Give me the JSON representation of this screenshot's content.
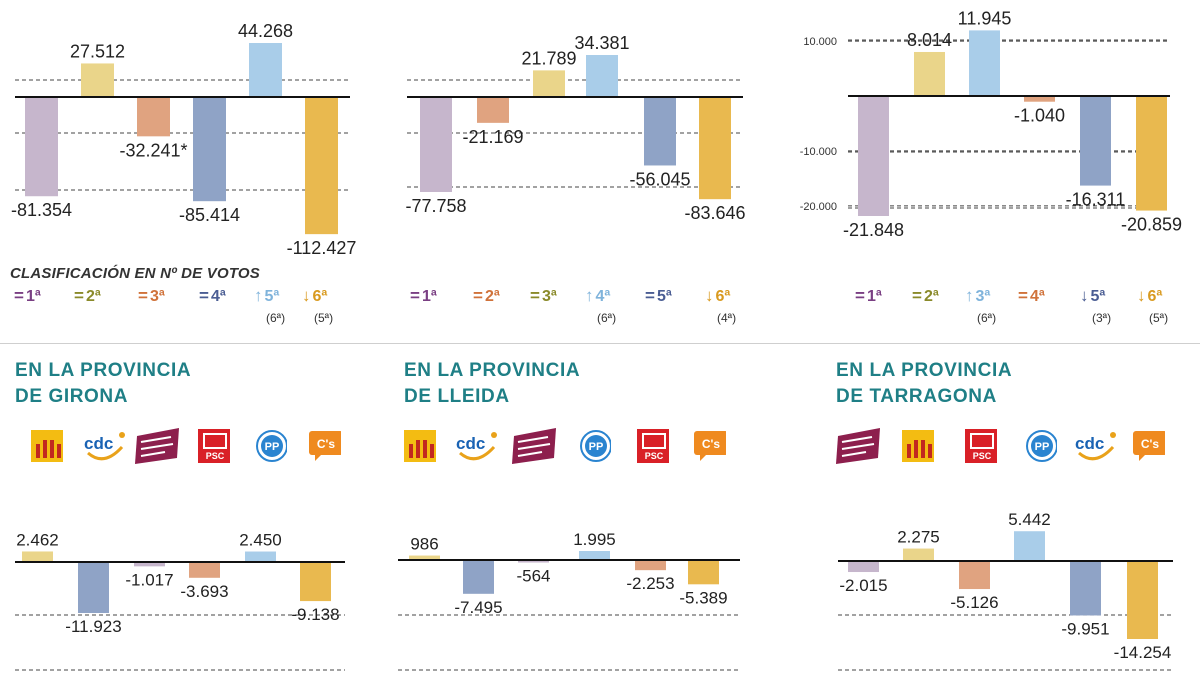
{
  "colors": {
    "erc": "#ead58a",
    "cdc": "#a9cde9",
    "jxs": "#c6b6cc",
    "psc": "#e0a380",
    "pp": "#8fa3c6",
    "cs": "#e9b94f",
    "teal": "#1f7f86",
    "purple": "#7a3f83",
    "olive": "#8a8a2a",
    "orange": "#d0723a",
    "navy": "#4a5d93",
    "lightblue": "#7fb3db",
    "gold": "#d99a1f"
  },
  "clasificacion_label": "CLASIFICACIÓN EN Nº DE VOTOS",
  "chart_data": [
    {
      "type": "bar",
      "categories": [
        "",
        "",
        "",
        "",
        "",
        ""
      ],
      "values": [
        -81354,
        27512,
        -32241,
        -85414,
        44268,
        -112427
      ],
      "labels": [
        "-81.354",
        "27.512",
        "-32.241*",
        "-85.414",
        "44.268",
        "-112.427"
      ],
      "series_colors": [
        "jxs",
        "erc",
        "psc",
        "pp",
        "cdc",
        "cs"
      ],
      "ylim": [
        -112427,
        44268
      ],
      "grid": true
    },
    {
      "type": "bar",
      "categories": [
        "",
        "",
        "",
        "",
        "",
        ""
      ],
      "values": [
        -77758,
        -21169,
        21789,
        34381,
        -56045,
        -83646
      ],
      "labels": [
        "-77.758",
        "-21.169",
        "21.789",
        "34.381",
        "-56.045",
        "-83.646"
      ],
      "series_colors": [
        "jxs",
        "psc",
        "erc",
        "cdc",
        "pp",
        "cs"
      ],
      "ylim": [
        -83646,
        34381
      ],
      "grid": true
    },
    {
      "type": "bar",
      "categories": [
        "",
        "",
        "",
        "",
        "",
        ""
      ],
      "values": [
        -21848,
        8014,
        11945,
        -1040,
        -16311,
        -20859
      ],
      "labels": [
        "-21.848",
        "8.014",
        "11.945",
        "-1.040",
        "-16.311",
        "-20.859"
      ],
      "series_colors": [
        "jxs",
        "erc",
        "cdc",
        "psc",
        "pp",
        "cs"
      ],
      "ylim": [
        -21848,
        11945
      ],
      "yticks": [
        {
          "value": 10000,
          "label": "10.000"
        },
        {
          "value": -10000,
          "label": "-10.000"
        },
        {
          "value": -20000,
          "label": "-20.000"
        }
      ],
      "grid": true
    },
    {
      "type": "bar",
      "title": "EN LA PROVINCIA DE GIRONA",
      "categories": [
        "",
        "",
        "",
        "",
        "",
        ""
      ],
      "values": [
        2462,
        -11923,
        -1017,
        -3693,
        2450,
        -9138
      ],
      "labels": [
        "2.462",
        "-11.923",
        "-1.017",
        "-3.693",
        "2.450",
        "-9.138"
      ],
      "series_colors": [
        "erc",
        "pp",
        "jxs",
        "psc",
        "cdc",
        "cs"
      ],
      "ylim": [
        -11923,
        2462
      ],
      "grid": true
    },
    {
      "type": "bar",
      "title": "EN LA PROVINCIA DE LLEIDA",
      "categories": [
        "",
        "",
        "",
        "",
        "",
        ""
      ],
      "values": [
        986,
        -7495,
        -564,
        1995,
        -2253,
        -5389
      ],
      "labels": [
        "986",
        "-7.495",
        "-564",
        "1.995",
        "-2.253",
        "-5.389"
      ],
      "series_colors": [
        "erc",
        "pp",
        "jxs",
        "cdc",
        "psc",
        "cs"
      ],
      "ylim": [
        -7495,
        1995
      ],
      "grid": true
    },
    {
      "type": "bar",
      "title": "EN LA PROVINCIA DE TARRAGONA",
      "categories": [
        "",
        "",
        "",
        "",
        "",
        ""
      ],
      "values": [
        -2015,
        2275,
        -5126,
        5442,
        -9951,
        -14254
      ],
      "labels": [
        "-2.015",
        "2.275",
        "-5.126",
        "5.442",
        "-9.951",
        "-14.254"
      ],
      "series_colors": [
        "jxs",
        "erc",
        "psc",
        "cdc",
        "pp",
        "cs"
      ],
      "ylim": [
        -14254,
        5442
      ],
      "grid": true
    }
  ],
  "rankings": [
    [
      {
        "sym": "=",
        "text": "1ª",
        "color": "purple"
      },
      {
        "sym": "=",
        "text": "2ª",
        "color": "olive"
      },
      {
        "sym": "=",
        "text": "3ª",
        "color": "orange"
      },
      {
        "sym": "=",
        "text": "4ª",
        "color": "navy"
      },
      {
        "sym": "↑",
        "text": "5ª",
        "color": "lightblue",
        "prev": "(6ª)"
      },
      {
        "sym": "↓",
        "text": "6ª",
        "color": "gold",
        "prev": "(5ª)"
      }
    ],
    [
      {
        "sym": "=",
        "text": "1ª",
        "color": "purple"
      },
      {
        "sym": "=",
        "text": "2ª",
        "color": "orange"
      },
      {
        "sym": "=",
        "text": "3ª",
        "color": "olive"
      },
      {
        "sym": "↑",
        "text": "4ª",
        "color": "lightblue",
        "prev": "(6ª)"
      },
      {
        "sym": "=",
        "text": "5ª",
        "color": "navy"
      },
      {
        "sym": "↓",
        "text": "6ª",
        "color": "gold",
        "prev": "(4ª)"
      }
    ],
    [
      {
        "sym": "=",
        "text": "1ª",
        "color": "purple"
      },
      {
        "sym": "=",
        "text": "2ª",
        "color": "olive"
      },
      {
        "sym": "↑",
        "text": "3ª",
        "color": "lightblue",
        "prev": "(6ª)"
      },
      {
        "sym": "=",
        "text": "4ª",
        "color": "orange"
      },
      {
        "sym": "↓",
        "text": "5ª",
        "color": "navy",
        "prev": "(3ª)"
      },
      {
        "sym": "↓",
        "text": "6ª",
        "color": "gold",
        "prev": "(5ª)"
      }
    ]
  ],
  "provinces": [
    {
      "title": "EN LA PROVINCIA\nDE GIRONA",
      "logos": [
        "erc-logo",
        "cdc-logo",
        "jxs-logo",
        "psc-logo",
        "pp-logo",
        "cs-logo"
      ]
    },
    {
      "title": "EN LA PROVINCIA\nDE LLEIDA",
      "logos": [
        "erc-logo",
        "cdc-logo",
        "jxs-logo",
        "pp-logo",
        "psc-logo",
        "cs-logo"
      ]
    },
    {
      "title": "EN LA PROVINCIA\nDE TARRAGONA",
      "logos": [
        "jxs-logo",
        "erc-logo",
        "psc-logo",
        "pp-logo",
        "cdc-logo",
        "cs-logo"
      ]
    }
  ],
  "logo_text": {
    "cdc": "cdc",
    "pp": "PP",
    "psc": "PSC",
    "cs": "C's"
  }
}
